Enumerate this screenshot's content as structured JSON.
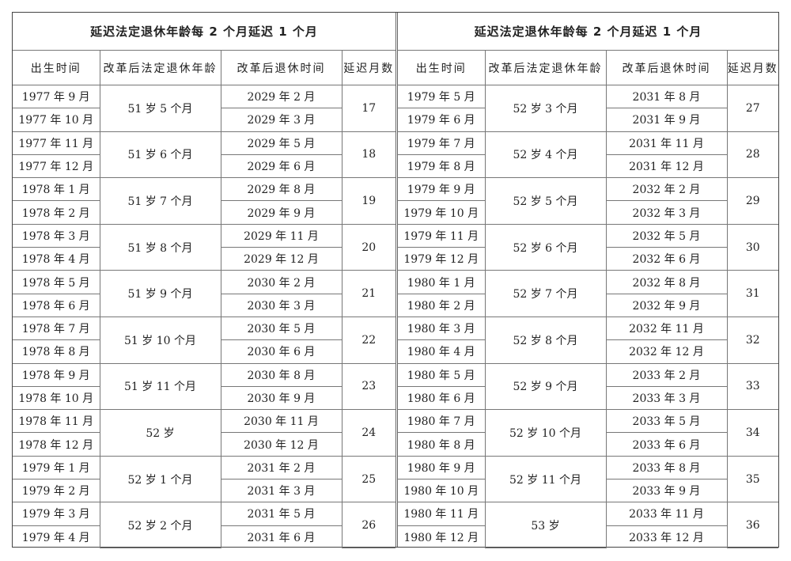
{
  "tables": [
    {
      "title": "延迟法定退休年龄每 2 个月延迟 1 个月",
      "headers": [
        "出生时间",
        "改革后法定退休年龄",
        "改革后退休时间",
        "延迟月数"
      ],
      "groups": [
        {
          "births": [
            "1977 年 9 月",
            "1977 年 10 月"
          ],
          "age": "51 岁 5 个月",
          "retire": [
            "2029 年 2 月",
            "2029 年 3 月"
          ],
          "delay": "17"
        },
        {
          "births": [
            "1977 年 11 月",
            "1977 年 12 月"
          ],
          "age": "51 岁 6 个月",
          "retire": [
            "2029 年 5 月",
            "2029 年 6 月"
          ],
          "delay": "18"
        },
        {
          "births": [
            "1978 年 1 月",
            "1978 年 2 月"
          ],
          "age": "51 岁 7 个月",
          "retire": [
            "2029 年 8 月",
            "2029 年 9 月"
          ],
          "delay": "19"
        },
        {
          "births": [
            "1978 年 3 月",
            "1978 年 4 月"
          ],
          "age": "51 岁 8 个月",
          "retire": [
            "2029 年 11 月",
            "2029 年 12 月"
          ],
          "delay": "20"
        },
        {
          "births": [
            "1978 年 5 月",
            "1978 年 6 月"
          ],
          "age": "51 岁 9 个月",
          "retire": [
            "2030 年 2 月",
            "2030 年 3 月"
          ],
          "delay": "21"
        },
        {
          "births": [
            "1978 年 7 月",
            "1978 年 8 月"
          ],
          "age": "51 岁 10 个月",
          "retire": [
            "2030 年 5 月",
            "2030 年 6 月"
          ],
          "delay": "22"
        },
        {
          "births": [
            "1978 年 9 月",
            "1978 年 10 月"
          ],
          "age": "51 岁 11 个月",
          "retire": [
            "2030 年 8 月",
            "2030 年 9 月"
          ],
          "delay": "23"
        },
        {
          "births": [
            "1978 年 11 月",
            "1978 年 12 月"
          ],
          "age": "52 岁",
          "retire": [
            "2030 年 11 月",
            "2030 年 12 月"
          ],
          "delay": "24"
        },
        {
          "births": [
            "1979 年 1 月",
            "1979 年 2 月"
          ],
          "age": "52 岁 1 个月",
          "retire": [
            "2031 年 2 月",
            "2031 年 3 月"
          ],
          "delay": "25"
        },
        {
          "births": [
            "1979 年 3 月",
            "1979 年 4 月"
          ],
          "age": "52 岁 2 个月",
          "retire": [
            "2031 年 5 月",
            "2031 年 6 月"
          ],
          "delay": "26"
        }
      ]
    },
    {
      "title": "延迟法定退休年龄每 2 个月延迟 1 个月",
      "headers": [
        "出生时间",
        "改革后法定退休年龄",
        "改革后退休时间",
        "延迟月数"
      ],
      "groups": [
        {
          "births": [
            "1979 年 5 月",
            "1979 年 6 月"
          ],
          "age": "52 岁 3 个月",
          "retire": [
            "2031 年 8 月",
            "2031 年 9 月"
          ],
          "delay": "27"
        },
        {
          "births": [
            "1979 年 7 月",
            "1979 年 8 月"
          ],
          "age": "52 岁 4 个月",
          "retire": [
            "2031 年 11 月",
            "2031 年 12 月"
          ],
          "delay": "28"
        },
        {
          "births": [
            "1979 年 9 月",
            "1979 年 10 月"
          ],
          "age": "52 岁 5 个月",
          "retire": [
            "2032 年 2 月",
            "2032 年 3 月"
          ],
          "delay": "29"
        },
        {
          "births": [
            "1979 年 11 月",
            "1979 年 12 月"
          ],
          "age": "52 岁 6 个月",
          "retire": [
            "2032 年 5 月",
            "2032 年 6 月"
          ],
          "delay": "30"
        },
        {
          "births": [
            "1980 年 1 月",
            "1980 年 2 月"
          ],
          "age": "52 岁 7 个月",
          "retire": [
            "2032 年 8 月",
            "2032 年 9 月"
          ],
          "delay": "31"
        },
        {
          "births": [
            "1980 年 3 月",
            "1980 年 4 月"
          ],
          "age": "52 岁 8 个月",
          "retire": [
            "2032 年 11 月",
            "2032 年 12 月"
          ],
          "delay": "32"
        },
        {
          "births": [
            "1980 年 5 月",
            "1980 年 6 月"
          ],
          "age": "52 岁 9 个月",
          "retire": [
            "2033 年 2 月",
            "2033 年 3 月"
          ],
          "delay": "33"
        },
        {
          "births": [
            "1980 年 7 月",
            "1980 年 8 月"
          ],
          "age": "52 岁 10 个月",
          "retire": [
            "2033 年 5 月",
            "2033 年 6 月"
          ],
          "delay": "34"
        },
        {
          "births": [
            "1980 年 9 月",
            "1980 年 10 月"
          ],
          "age": "52 岁 11 个月",
          "retire": [
            "2033 年 8 月",
            "2033 年 9 月"
          ],
          "delay": "35"
        },
        {
          "births": [
            "1980 年 11 月",
            "1980 年 12 月"
          ],
          "age": "53 岁",
          "retire": [
            "2033 年 11 月",
            "2033 年 12 月"
          ],
          "delay": "36"
        }
      ]
    }
  ]
}
